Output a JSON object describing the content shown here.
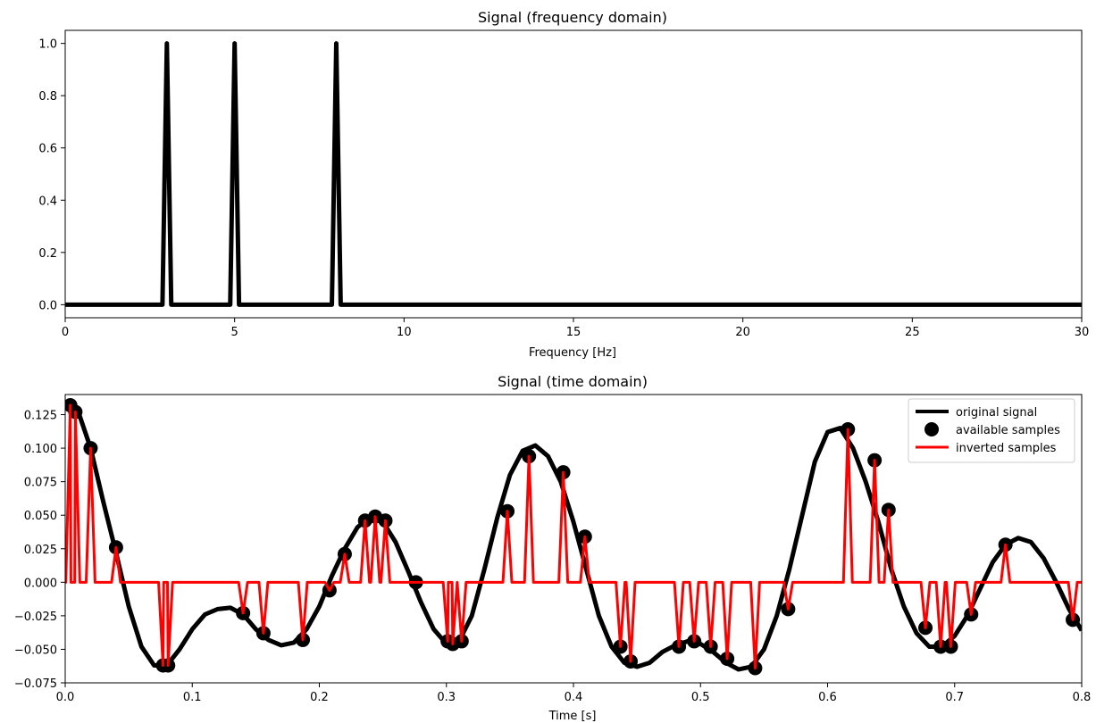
{
  "chart_data": [
    {
      "type": "line",
      "title": "Signal (frequency domain)",
      "xlabel": "Frequency [Hz]",
      "ylabel": "",
      "xlim": [
        0,
        30
      ],
      "ylim": [
        -0.05,
        1.05
      ],
      "xticks": [
        "0",
        "5",
        "10",
        "15",
        "20",
        "25",
        "30"
      ],
      "xtick_values": [
        0,
        5,
        10,
        15,
        20,
        25,
        30
      ],
      "yticks": [
        "0.0",
        "0.2",
        "0.4",
        "0.6",
        "0.8",
        "1.0"
      ],
      "ytick_values": [
        0,
        0.2,
        0.4,
        0.6,
        0.8,
        1.0
      ],
      "grid": false,
      "series": [
        {
          "color": "#000000",
          "x": [
            0,
            2.87,
            3.0,
            3.13,
            4.87,
            5.0,
            5.13,
            7.87,
            8.0,
            8.13,
            30
          ],
          "y": [
            0,
            0,
            1.0,
            0,
            0,
            1.0,
            0,
            0,
            1.0,
            0,
            0
          ]
        }
      ]
    },
    {
      "type": "line",
      "title": "Signal (time domain)",
      "xlabel": "Time [s]",
      "ylabel": "",
      "xlim": [
        0,
        0.8
      ],
      "ylim": [
        -0.075,
        0.14
      ],
      "xticks": [
        "0.0",
        "0.1",
        "0.2",
        "0.3",
        "0.4",
        "0.5",
        "0.6",
        "0.7",
        "0.8"
      ],
      "xtick_values": [
        0,
        0.1,
        0.2,
        0.3,
        0.4,
        0.5,
        0.6,
        0.7,
        0.8
      ],
      "yticks": [
        "−0.075",
        "−0.050",
        "−0.025",
        "0.000",
        "0.025",
        "0.050",
        "0.075",
        "0.100",
        "0.125"
      ],
      "ytick_values": [
        -0.075,
        -0.05,
        -0.025,
        0,
        0.025,
        0.05,
        0.075,
        0.1,
        0.125
      ],
      "grid": false,
      "legend_position": "top-right",
      "series": [
        {
          "name": "original signal",
          "color": "#000000",
          "kind": "line",
          "x": [
            0,
            0.005,
            0.01,
            0.02,
            0.03,
            0.04,
            0.05,
            0.06,
            0.07,
            0.08,
            0.09,
            0.1,
            0.11,
            0.12,
            0.13,
            0.14,
            0.15,
            0.16,
            0.17,
            0.18,
            0.19,
            0.2,
            0.21,
            0.22,
            0.23,
            0.24,
            0.25,
            0.26,
            0.27,
            0.28,
            0.29,
            0.3,
            0.31,
            0.32,
            0.33,
            0.34,
            0.35,
            0.36,
            0.37,
            0.38,
            0.39,
            0.4,
            0.41,
            0.42,
            0.43,
            0.44,
            0.45,
            0.46,
            0.47,
            0.48,
            0.49,
            0.5,
            0.51,
            0.52,
            0.53,
            0.54,
            0.55,
            0.56,
            0.57,
            0.58,
            0.59,
            0.6,
            0.61,
            0.62,
            0.63,
            0.64,
            0.65,
            0.66,
            0.67,
            0.68,
            0.69,
            0.7,
            0.71,
            0.72,
            0.73,
            0.74,
            0.75,
            0.76,
            0.77,
            0.78,
            0.79,
            0.8
          ],
          "y": [
            0.13,
            0.132,
            0.128,
            0.1,
            0.06,
            0.022,
            -0.018,
            -0.048,
            -0.062,
            -0.062,
            -0.05,
            -0.035,
            -0.024,
            -0.02,
            -0.019,
            -0.024,
            -0.035,
            -0.043,
            -0.047,
            -0.045,
            -0.035,
            -0.018,
            0.005,
            0.025,
            0.041,
            0.049,
            0.045,
            0.03,
            0.008,
            -0.015,
            -0.035,
            -0.046,
            -0.044,
            -0.025,
            0.01,
            0.048,
            0.08,
            0.098,
            0.102,
            0.094,
            0.075,
            0.045,
            0.01,
            -0.025,
            -0.048,
            -0.06,
            -0.063,
            -0.06,
            -0.052,
            -0.047,
            -0.044,
            -0.046,
            -0.052,
            -0.06,
            -0.065,
            -0.063,
            -0.05,
            -0.025,
            0.01,
            0.05,
            0.09,
            0.112,
            0.115,
            0.1,
            0.075,
            0.045,
            0.01,
            -0.018,
            -0.038,
            -0.048,
            -0.048,
            -0.04,
            -0.025,
            -0.005,
            0.015,
            0.028,
            0.033,
            0.03,
            0.018,
            0.0,
            -0.02,
            -0.036
          ]
        },
        {
          "name": "available samples",
          "color": "#000000",
          "kind": "scatter",
          "x": [
            0.004,
            0.008,
            0.02,
            0.04,
            0.077,
            0.081,
            0.14,
            0.156,
            0.187,
            0.208,
            0.22,
            0.236,
            0.244,
            0.252,
            0.276,
            0.301,
            0.305,
            0.312,
            0.348,
            0.365,
            0.392,
            0.409,
            0.437,
            0.445,
            0.483,
            0.495,
            0.508,
            0.521,
            0.543,
            0.569,
            0.616,
            0.637,
            0.648,
            0.677,
            0.689,
            0.697,
            0.713,
            0.74,
            0.793
          ],
          "y": [
            0.132,
            0.127,
            0.1,
            0.026,
            -0.062,
            -0.062,
            -0.023,
            -0.038,
            -0.043,
            -0.006,
            0.021,
            0.046,
            0.049,
            0.046,
            0.0,
            -0.044,
            -0.046,
            -0.044,
            0.053,
            0.094,
            0.082,
            0.034,
            -0.048,
            -0.059,
            -0.048,
            -0.044,
            -0.048,
            -0.057,
            -0.064,
            -0.02,
            0.114,
            0.091,
            0.054,
            -0.034,
            -0.048,
            -0.048,
            -0.024,
            0.028,
            -0.028
          ]
        },
        {
          "name": "inverted samples",
          "color": "#ff0000",
          "kind": "impulses",
          "x": [
            0.004,
            0.008,
            0.02,
            0.04,
            0.077,
            0.081,
            0.14,
            0.156,
            0.187,
            0.208,
            0.22,
            0.236,
            0.244,
            0.252,
            0.276,
            0.301,
            0.305,
            0.312,
            0.348,
            0.365,
            0.392,
            0.409,
            0.437,
            0.445,
            0.483,
            0.495,
            0.508,
            0.521,
            0.543,
            0.569,
            0.616,
            0.637,
            0.648,
            0.677,
            0.689,
            0.697,
            0.713,
            0.74,
            0.793
          ],
          "y": [
            0.132,
            0.127,
            0.1,
            0.026,
            -0.062,
            -0.062,
            -0.023,
            -0.038,
            -0.043,
            -0.006,
            0.021,
            0.046,
            0.049,
            0.046,
            0.0,
            -0.044,
            -0.046,
            -0.044,
            0.053,
            0.094,
            0.082,
            0.034,
            -0.048,
            -0.059,
            -0.048,
            -0.044,
            -0.048,
            -0.057,
            -0.064,
            -0.02,
            0.114,
            0.091,
            0.054,
            -0.034,
            -0.048,
            -0.048,
            -0.024,
            0.028,
            -0.028
          ]
        }
      ]
    }
  ]
}
